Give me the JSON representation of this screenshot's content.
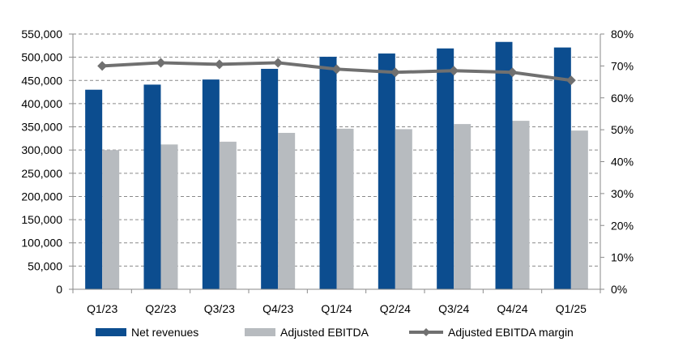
{
  "chart_data": {
    "type": "bar",
    "title": "",
    "xlabel": "",
    "ylabel": "",
    "categories": [
      "Q1/23",
      "Q2/23",
      "Q3/23",
      "Q4/23",
      "Q1/24",
      "Q2/24",
      "Q3/24",
      "Q4/24",
      "Q1/25"
    ],
    "series": [
      {
        "name": "Net revenues",
        "kind": "bar",
        "axis": "left",
        "color": "#0c4d8f",
        "values": [
          430000,
          441000,
          452000,
          475000,
          501000,
          508000,
          519000,
          533000,
          521000
        ]
      },
      {
        "name": "Adjusted EBITDA",
        "kind": "bar",
        "axis": "left",
        "color": "#b7bbbf",
        "values": [
          300000,
          312000,
          318000,
          337000,
          346000,
          345000,
          356000,
          363000,
          342000
        ]
      },
      {
        "name": "Adjusted EBITDA margin",
        "kind": "line",
        "axis": "right",
        "color": "#707070",
        "values": [
          70,
          71,
          70.5,
          71,
          69,
          68,
          68.5,
          68,
          65.5
        ]
      }
    ],
    "ylim": [
      0,
      550000
    ],
    "y_ticks": [
      "0",
      "50,000",
      "100,000",
      "150,000",
      "200,000",
      "250,000",
      "300,000",
      "350,000",
      "400,000",
      "450,000",
      "500,000",
      "550,000"
    ],
    "y2lim": [
      0,
      80
    ],
    "y2_ticks": [
      "0%",
      "10%",
      "20%",
      "30%",
      "40%",
      "50%",
      "60%",
      "70%",
      "80%"
    ],
    "grid": "horizontal-dashed",
    "legend": {
      "placement": "bottom",
      "items": [
        {
          "label": "Net revenues",
          "swatch": "bar",
          "color": "#0c4d8f"
        },
        {
          "label": "Adjusted EBITDA",
          "swatch": "bar",
          "color": "#b7bbbf"
        },
        {
          "label": "Adjusted EBITDA margin",
          "swatch": "line-marker",
          "color": "#707070"
        }
      ]
    }
  }
}
